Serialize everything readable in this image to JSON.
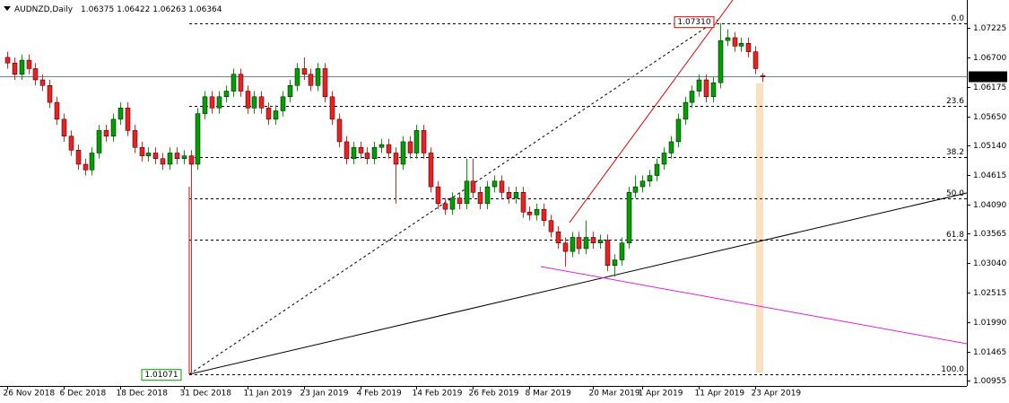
{
  "chart_data": {
    "type": "candlestick",
    "symbol": "AUDNZD,Daily",
    "up_color": "#00a000",
    "down_color": "#f02020",
    "categories": [
      "26 Nov 2018",
      null,
      null,
      null,
      null,
      null,
      null,
      null,
      "6 Dec 2018",
      null,
      null,
      null,
      null,
      null,
      null,
      null,
      "18 Dec 2018",
      null,
      null,
      null,
      null,
      null,
      null,
      null,
      null,
      "31 Dec 2018",
      null,
      null,
      null,
      null,
      null,
      null,
      null,
      null,
      "11 Jan 2019",
      null,
      null,
      null,
      null,
      null,
      null,
      null,
      "23 Jan 2019",
      null,
      null,
      null,
      null,
      null,
      null,
      null,
      "4 Feb 2019",
      null,
      null,
      null,
      null,
      null,
      null,
      null,
      "14 Feb 2019",
      null,
      null,
      null,
      null,
      null,
      null,
      null,
      "26 Feb 2019",
      null,
      null,
      null,
      null,
      null,
      null,
      null,
      "8 Mar 2019",
      null,
      null,
      null,
      null,
      null,
      null,
      null,
      null,
      "20 Mar 2019",
      null,
      null,
      null,
      null,
      null,
      null,
      "1 Apr 2019",
      null,
      null,
      null,
      null,
      null,
      null,
      null,
      "11 Apr 2019",
      null,
      null,
      null,
      null,
      null,
      null,
      null,
      "23 Apr 2019",
      null
    ],
    "open": [
      1.067,
      1.066,
      1.064,
      1.0665,
      1.065,
      1.063,
      1.062,
      1.059,
      1.056,
      1.053,
      1.0505,
      1.048,
      1.047,
      1.05,
      1.054,
      1.053,
      1.056,
      1.058,
      1.054,
      1.051,
      1.0495,
      1.05,
      1.049,
      1.048,
      1.05,
      1.049,
      1.0495,
      1.048,
      1.057,
      1.06,
      1.058,
      1.06,
      1.061,
      1.064,
      1.061,
      1.058,
      1.06,
      1.058,
      1.056,
      1.0575,
      1.06,
      1.062,
      1.065,
      1.064,
      1.062,
      1.065,
      1.06,
      1.056,
      1.052,
      1.049,
      1.051,
      1.05,
      1.049,
      1.051,
      1.0515,
      1.05,
      1.048,
      1.052,
      1.05,
      1.054,
      1.05,
      1.044,
      1.041,
      1.04,
      1.042,
      1.041,
      1.045,
      1.043,
      1.041,
      1.044,
      1.045,
      1.043,
      1.042,
      1.043,
      1.0395,
      1.039,
      1.04,
      1.038,
      1.036,
      1.034,
      1.0325,
      1.035,
      1.033,
      1.035,
      1.034,
      1.0345,
      1.03,
      1.031,
      1.034,
      1.043,
      1.044,
      1.045,
      1.046,
      1.048,
      1.05,
      1.052,
      1.056,
      1.059,
      1.061,
      1.063,
      1.06,
      1.0625,
      1.07,
      1.0705,
      1.069,
      1.0695,
      1.068,
      1.06375
    ],
    "high": [
      1.068,
      1.067,
      1.0675,
      1.0675,
      1.066,
      1.064,
      1.063,
      1.06,
      1.057,
      1.054,
      1.0515,
      1.049,
      1.051,
      1.055,
      1.055,
      1.057,
      1.059,
      1.059,
      1.055,
      1.052,
      1.051,
      1.051,
      1.05,
      1.051,
      1.051,
      1.0505,
      1.0505,
      1.058,
      1.061,
      1.061,
      1.061,
      1.062,
      1.065,
      1.065,
      1.062,
      1.061,
      1.061,
      1.059,
      1.0585,
      1.061,
      1.063,
      1.066,
      1.067,
      1.065,
      1.066,
      1.066,
      1.061,
      1.057,
      1.053,
      1.052,
      1.052,
      1.051,
      1.052,
      1.0525,
      1.0525,
      1.051,
      1.053,
      1.053,
      1.055,
      1.055,
      1.051,
      1.045,
      1.042,
      1.043,
      1.043,
      1.049,
      1.049,
      1.044,
      1.045,
      1.046,
      1.046,
      1.044,
      1.044,
      1.044,
      1.0405,
      1.041,
      1.041,
      1.039,
      1.037,
      1.035,
      1.036,
      1.036,
      1.038,
      1.036,
      1.0355,
      1.0355,
      1.032,
      1.035,
      1.044,
      1.046,
      1.046,
      1.047,
      1.049,
      1.051,
      1.053,
      1.057,
      1.06,
      1.062,
      1.064,
      1.064,
      1.0635,
      1.0731,
      1.072,
      1.0715,
      1.0705,
      1.0705,
      1.069,
      1.06422
    ],
    "low": [
      1.065,
      1.063,
      1.063,
      1.064,
      1.062,
      1.061,
      1.058,
      1.055,
      1.052,
      1.0495,
      1.047,
      1.046,
      1.046,
      1.049,
      1.052,
      1.052,
      1.055,
      1.053,
      1.05,
      1.0485,
      1.0485,
      1.048,
      1.047,
      1.047,
      1.048,
      1.048,
      1.01071,
      1.047,
      1.056,
      1.057,
      1.057,
      1.059,
      1.06,
      1.06,
      1.057,
      1.057,
      1.057,
      1.055,
      1.055,
      1.0565,
      1.059,
      1.061,
      1.063,
      1.061,
      1.061,
      1.059,
      1.055,
      1.051,
      1.048,
      1.048,
      1.049,
      1.048,
      1.048,
      1.05,
      1.049,
      1.041,
      1.047,
      1.049,
      1.049,
      1.049,
      1.043,
      1.04,
      1.039,
      1.039,
      1.04,
      1.04,
      1.042,
      1.04,
      1.04,
      1.043,
      1.042,
      1.041,
      1.041,
      1.0385,
      1.038,
      1.038,
      1.037,
      1.035,
      1.033,
      1.0298,
      1.0315,
      1.032,
      1.032,
      1.033,
      1.033,
      1.029,
      1.028,
      1.03,
      1.033,
      1.042,
      1.043,
      1.044,
      1.045,
      1.047,
      1.049,
      1.051,
      1.055,
      1.058,
      1.06,
      1.059,
      1.059,
      1.0615,
      1.069,
      1.068,
      1.068,
      1.067,
      1.064,
      1.06263
    ],
    "close": [
      1.066,
      1.064,
      1.0665,
      1.065,
      1.063,
      1.062,
      1.059,
      1.056,
      1.053,
      1.0505,
      1.048,
      1.047,
      1.05,
      1.054,
      1.053,
      1.056,
      1.058,
      1.054,
      1.051,
      1.0495,
      1.05,
      1.049,
      1.048,
      1.05,
      1.049,
      1.0495,
      1.048,
      1.057,
      1.06,
      1.058,
      1.06,
      1.061,
      1.064,
      1.061,
      1.058,
      1.06,
      1.058,
      1.056,
      1.0575,
      1.06,
      1.062,
      1.065,
      1.064,
      1.062,
      1.065,
      1.06,
      1.056,
      1.052,
      1.049,
      1.051,
      1.05,
      1.049,
      1.051,
      1.0515,
      1.05,
      1.048,
      1.052,
      1.05,
      1.054,
      1.05,
      1.044,
      1.041,
      1.04,
      1.042,
      1.041,
      1.045,
      1.043,
      1.041,
      1.044,
      1.045,
      1.043,
      1.042,
      1.043,
      1.0395,
      1.039,
      1.04,
      1.038,
      1.036,
      1.034,
      1.0325,
      1.035,
      1.033,
      1.035,
      1.034,
      1.0345,
      1.03,
      1.031,
      1.034,
      1.043,
      1.044,
      1.045,
      1.046,
      1.048,
      1.05,
      1.052,
      1.056,
      1.059,
      1.061,
      1.063,
      1.06,
      1.0625,
      1.07,
      1.0705,
      1.069,
      1.0695,
      1.068,
      1.065,
      1.06364
    ],
    "ylim": [
      1.00859,
      1.0772
    ],
    "yticks": [
      1.07225,
      {
        "value": 1.067,
        "label": "1.06700"
      },
      1.06175,
      {
        "value": 1.0565,
        "label": "1.05650"
      },
      {
        "value": 1.0514,
        "label": "1.05140"
      },
      1.04615,
      {
        "value": 1.0409,
        "label": "1.04090"
      },
      1.03565,
      {
        "value": 1.0304,
        "label": "1.03040"
      },
      1.02515,
      {
        "value": 1.0199,
        "label": "1.01990"
      },
      1.01465,
      1.00955
    ],
    "fibonacci": {
      "high": {
        "value": 1.0731,
        "label": "1.07310"
      },
      "low": 1.01071,
      "levels": [
        {
          "value": 0,
          "label": "0.0"
        },
        23.6,
        38.2,
        {
          "value": 50,
          "label": "50.0"
        },
        61.8,
        {
          "value": 100,
          "label": "100.0"
        }
      ]
    }
  }
}
